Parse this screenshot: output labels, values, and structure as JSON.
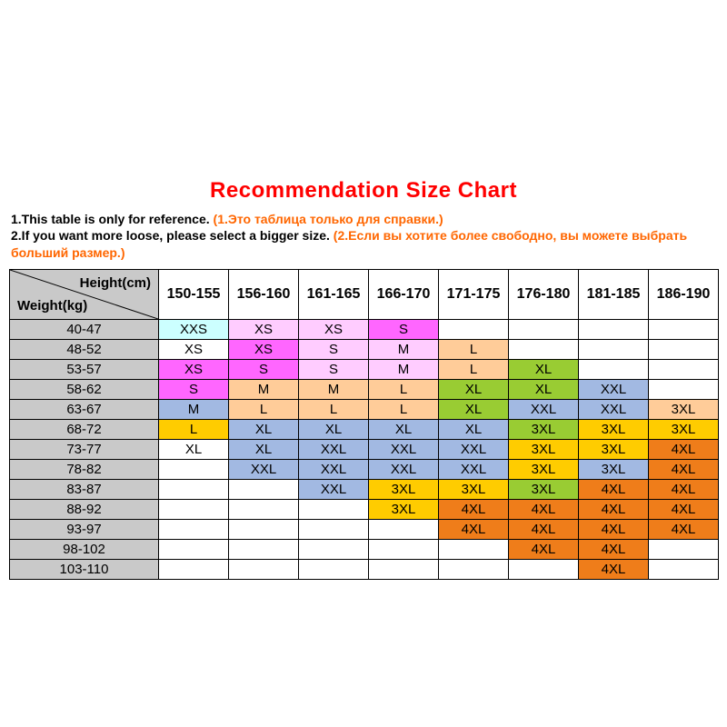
{
  "page": {
    "title": "Recommendation Size Chart",
    "title_color": "#ff0000",
    "note_accent_color": "#ff6600",
    "notes": [
      {
        "en": "1.This table is only for reference. ",
        "ru": "(1.Это таблица только для справки.)"
      },
      {
        "en": "2.If you want more loose, please select a bigger size. ",
        "ru": "(2.Если вы хотите более свободно, вы можете выбрать больший размер.)"
      }
    ]
  },
  "colors": {
    "cyan": "#ccffff",
    "pink": "#ffccff",
    "magenta": "#ff66ff",
    "peach": "#ffcc99",
    "green": "#99cc33",
    "blue": "#a2b9e2",
    "yellow": "#ffcc00",
    "orange": "#ef7d1a",
    "white": "#ffffff",
    "header_gray": "#c9c9c9"
  },
  "chart_data": {
    "type": "table",
    "title": "Recommendation Size Chart",
    "corner": {
      "top": "Height(cm)",
      "bottom": "Weight(kg)"
    },
    "columns": [
      "150-155",
      "156-160",
      "161-165",
      "166-170",
      "171-175",
      "176-180",
      "181-185",
      "186-190"
    ],
    "rows": [
      {
        "weight": "40-47",
        "cells": [
          {
            "size": "XXS",
            "color": "cyan"
          },
          {
            "size": "XS",
            "color": "pink"
          },
          {
            "size": "XS",
            "color": "pink"
          },
          {
            "size": "S",
            "color": "magenta"
          },
          null,
          null,
          null,
          null
        ]
      },
      {
        "weight": "48-52",
        "cells": [
          {
            "size": "XS",
            "color": "white"
          },
          {
            "size": "XS",
            "color": "magenta"
          },
          {
            "size": "S",
            "color": "pink"
          },
          {
            "size": "M",
            "color": "pink"
          },
          {
            "size": "L",
            "color": "peach"
          },
          null,
          null,
          null
        ]
      },
      {
        "weight": "53-57",
        "cells": [
          {
            "size": "XS",
            "color": "magenta"
          },
          {
            "size": "S",
            "color": "magenta"
          },
          {
            "size": "S",
            "color": "pink"
          },
          {
            "size": "M",
            "color": "pink"
          },
          {
            "size": "L",
            "color": "peach"
          },
          {
            "size": "XL",
            "color": "green"
          },
          null,
          null
        ]
      },
      {
        "weight": "58-62",
        "cells": [
          {
            "size": "S",
            "color": "magenta"
          },
          {
            "size": "M",
            "color": "peach"
          },
          {
            "size": "M",
            "color": "peach"
          },
          {
            "size": "L",
            "color": "peach"
          },
          {
            "size": "XL",
            "color": "green"
          },
          {
            "size": "XL",
            "color": "green"
          },
          {
            "size": "XXL",
            "color": "blue"
          },
          null
        ]
      },
      {
        "weight": "63-67",
        "cells": [
          {
            "size": "M",
            "color": "blue"
          },
          {
            "size": "L",
            "color": "peach"
          },
          {
            "size": "L",
            "color": "peach"
          },
          {
            "size": "L",
            "color": "peach"
          },
          {
            "size": "XL",
            "color": "green"
          },
          {
            "size": "XXL",
            "color": "blue"
          },
          {
            "size": "XXL",
            "color": "blue"
          },
          {
            "size": "3XL",
            "color": "peach"
          }
        ]
      },
      {
        "weight": "68-72",
        "cells": [
          {
            "size": "L",
            "color": "yellow"
          },
          {
            "size": "XL",
            "color": "blue"
          },
          {
            "size": "XL",
            "color": "blue"
          },
          {
            "size": "XL",
            "color": "blue"
          },
          {
            "size": "XL",
            "color": "blue"
          },
          {
            "size": "3XL",
            "color": "green"
          },
          {
            "size": "3XL",
            "color": "yellow"
          },
          {
            "size": "3XL",
            "color": "yellow"
          }
        ]
      },
      {
        "weight": "73-77",
        "cells": [
          {
            "size": "XL",
            "color": "white"
          },
          {
            "size": "XL",
            "color": "blue"
          },
          {
            "size": "XXL",
            "color": "blue"
          },
          {
            "size": "XXL",
            "color": "blue"
          },
          {
            "size": "XXL",
            "color": "blue"
          },
          {
            "size": "3XL",
            "color": "yellow"
          },
          {
            "size": "3XL",
            "color": "yellow"
          },
          {
            "size": "4XL",
            "color": "orange"
          }
        ]
      },
      {
        "weight": "78-82",
        "cells": [
          null,
          {
            "size": "XXL",
            "color": "blue"
          },
          {
            "size": "XXL",
            "color": "blue"
          },
          {
            "size": "XXL",
            "color": "blue"
          },
          {
            "size": "XXL",
            "color": "blue"
          },
          {
            "size": "3XL",
            "color": "yellow"
          },
          {
            "size": "3XL",
            "color": "blue"
          },
          {
            "size": "4XL",
            "color": "orange"
          }
        ]
      },
      {
        "weight": "83-87",
        "cells": [
          null,
          null,
          {
            "size": "XXL",
            "color": "blue"
          },
          {
            "size": "3XL",
            "color": "yellow"
          },
          {
            "size": "3XL",
            "color": "yellow"
          },
          {
            "size": "3XL",
            "color": "green"
          },
          {
            "size": "4XL",
            "color": "orange"
          },
          {
            "size": "4XL",
            "color": "orange"
          }
        ]
      },
      {
        "weight": "88-92",
        "cells": [
          null,
          null,
          null,
          {
            "size": "3XL",
            "color": "yellow"
          },
          {
            "size": "4XL",
            "color": "orange"
          },
          {
            "size": "4XL",
            "color": "orange"
          },
          {
            "size": "4XL",
            "color": "orange"
          },
          {
            "size": "4XL",
            "color": "orange"
          }
        ]
      },
      {
        "weight": "93-97",
        "cells": [
          null,
          null,
          null,
          null,
          {
            "size": "4XL",
            "color": "orange"
          },
          {
            "size": "4XL",
            "color": "orange"
          },
          {
            "size": "4XL",
            "color": "orange"
          },
          {
            "size": "4XL",
            "color": "orange"
          }
        ]
      },
      {
        "weight": "98-102",
        "cells": [
          null,
          null,
          null,
          null,
          null,
          {
            "size": "4XL",
            "color": "orange"
          },
          {
            "size": "4XL",
            "color": "orange"
          },
          null
        ]
      },
      {
        "weight": "103-110",
        "cells": [
          null,
          null,
          null,
          null,
          null,
          null,
          {
            "size": "4XL",
            "color": "orange"
          },
          null
        ]
      }
    ]
  }
}
